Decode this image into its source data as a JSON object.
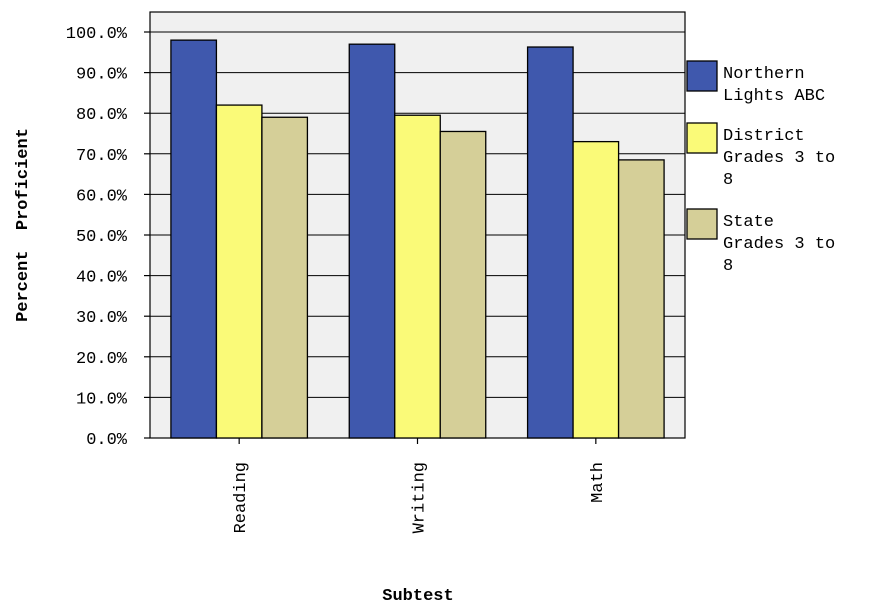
{
  "chart_data": {
    "type": "bar",
    "title": "",
    "xlabel": "Subtest",
    "ylabel": "Percent  Proficient",
    "ylim": [
      0,
      100
    ],
    "yticks": [
      "0.0%",
      "10.0%",
      "20.0%",
      "30.0%",
      "40.0%",
      "50.0%",
      "60.0%",
      "70.0%",
      "80.0%",
      "90.0%",
      "100.0%"
    ],
    "categories": [
      "Reading",
      "Writing",
      "Math"
    ],
    "grid": true,
    "legend_position": "right",
    "series": [
      {
        "name": "Northern Lights ABC",
        "legend_lines": [
          "Northern",
          "Lights ABC"
        ],
        "color": "#3f58ad",
        "values": [
          98,
          97,
          96.3
        ]
      },
      {
        "name": "District Grades 3 to 8",
        "legend_lines": [
          "District",
          "Grades 3 to",
          "8"
        ],
        "color": "#fafa78",
        "values": [
          82,
          79.5,
          73
        ]
      },
      {
        "name": "State Grades 3 to 8",
        "legend_lines": [
          "State",
          "Grades 3 to",
          "8"
        ],
        "color": "#d5cf98",
        "values": [
          79,
          75.5,
          68.5
        ]
      }
    ],
    "colors": {
      "plot_background": "#f0f0f0",
      "axis": "#000000"
    }
  }
}
